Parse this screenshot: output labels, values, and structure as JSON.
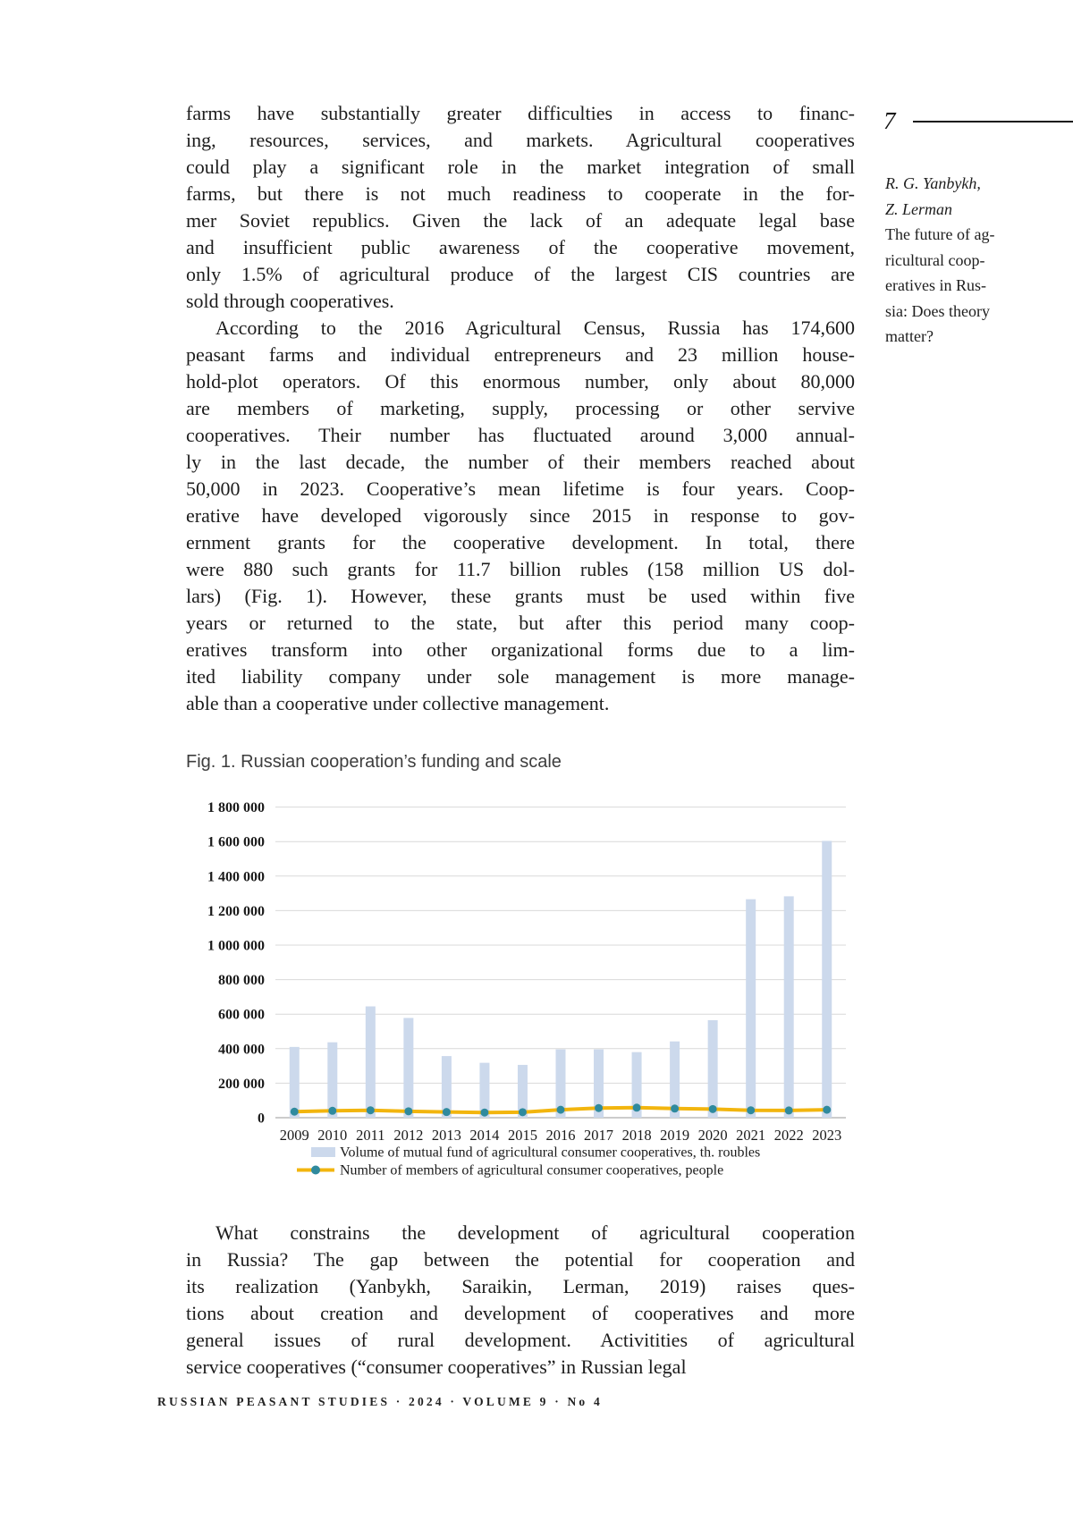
{
  "margin": {
    "page_number": "7",
    "author_lines": [
      "R. G. Yanbykh,",
      "Z. Lerman"
    ],
    "title_lines": [
      "The future of ag-",
      "ricultural coop-",
      "eratives in Rus-",
      "sia: Does theory",
      "matter?"
    ]
  },
  "paragraphs": [
    {
      "indent": false,
      "lines": [
        "farms have substantially greater difficulties in access to financ-",
        "ing, resources, services, and markets. Agricultural cooperatives",
        "could play a significant role in the market integration of small",
        "farms, but there is not much readiness to cooperate in the for-",
        "mer Soviet republics. Given the lack of an adequate legal base",
        "and insufficient public awareness of the cooperative movement,",
        "only 1.5% of agricultural produce of the largest CIS countries are",
        "sold through cooperatives."
      ]
    },
    {
      "indent": true,
      "lines": [
        "According to the 2016 Agricultural Census, Russia has 174,600",
        "peasant farms and individual entrepreneurs and 23 million house-",
        "hold-plot operators. Of this enormous number, only about 80,000",
        "are members of marketing, supply, processing or other servive",
        "cooperatives. Their number has fluctuated around 3,000 annual-",
        "ly in the last decade, the number of their members reached about",
        "50,000 in 2023. Cooperative’s mean lifetime is four years. Coop-",
        "erative have developed vigorously since 2015 in response to gov-",
        "ernment grants for the cooperative development. In total, there",
        "were 880 such grants for 11.7 billion rubles (158 million US dol-",
        "lars) (Fig. 1). However, these grants must be used within five",
        "years or returned to the state, but after this period many coop-",
        "eratives transform into other organizational forms due to a lim-",
        "ited liability company under sole management is more manage-",
        "able than a cooperative under collective management."
      ]
    }
  ],
  "bottom_paragraphs": [
    {
      "indent": true,
      "lines": [
        "What constrains the development of agricultural cooperation",
        "in Russia? The gap between the potential for cooperation and",
        "its realization (Yanbykh, Saraikin, Lerman, 2019) raises ques-",
        "tions about creation and development of cooperatives and more",
        "general issues of rural development. Activitities of agricultural",
        "service cooperatives (“consumer cooperatives” in Russian legal"
      ]
    }
  ],
  "figure": {
    "caption": "Fig. 1. Russian cooperation’s funding and scale"
  },
  "chart_data": {
    "type": "bar",
    "title": "Fig. 1. Russian cooperation’s funding and scale",
    "categories": [
      "2009",
      "2010",
      "2011",
      "2012",
      "2013",
      "2014",
      "2015",
      "2016",
      "2017",
      "2018",
      "2019",
      "2020",
      "2021",
      "2022",
      "2023"
    ],
    "series": [
      {
        "name": "Volume of mutual fund of agricultural consumer cooperatives, th. roubles",
        "type": "bar",
        "color": "#ccd9ec",
        "values": [
          410000,
          437000,
          645000,
          578000,
          357000,
          318000,
          306000,
          396000,
          396000,
          380000,
          442000,
          565000,
          1266000,
          1283000,
          1604000
        ]
      },
      {
        "name": "Number of members of agricultural consumer cooperatives, people",
        "type": "line",
        "color": "#f2b50e",
        "marker_color": "#2f8a9e",
        "values": [
          35000,
          40000,
          43000,
          37000,
          33000,
          30000,
          32000,
          46000,
          56000,
          58000,
          53000,
          50000,
          43000,
          42000,
          46000
        ]
      }
    ],
    "ylim": [
      0,
      1800000
    ],
    "ytick_step": 200000,
    "grid": true,
    "gridline_color": "#d9d9d9",
    "axis_color": "#adadad",
    "legend_position": "bottom"
  },
  "footer": {
    "text": "RUSSIAN PEASANT STUDIES · 2024 · VOLUME 9 · No 4"
  }
}
